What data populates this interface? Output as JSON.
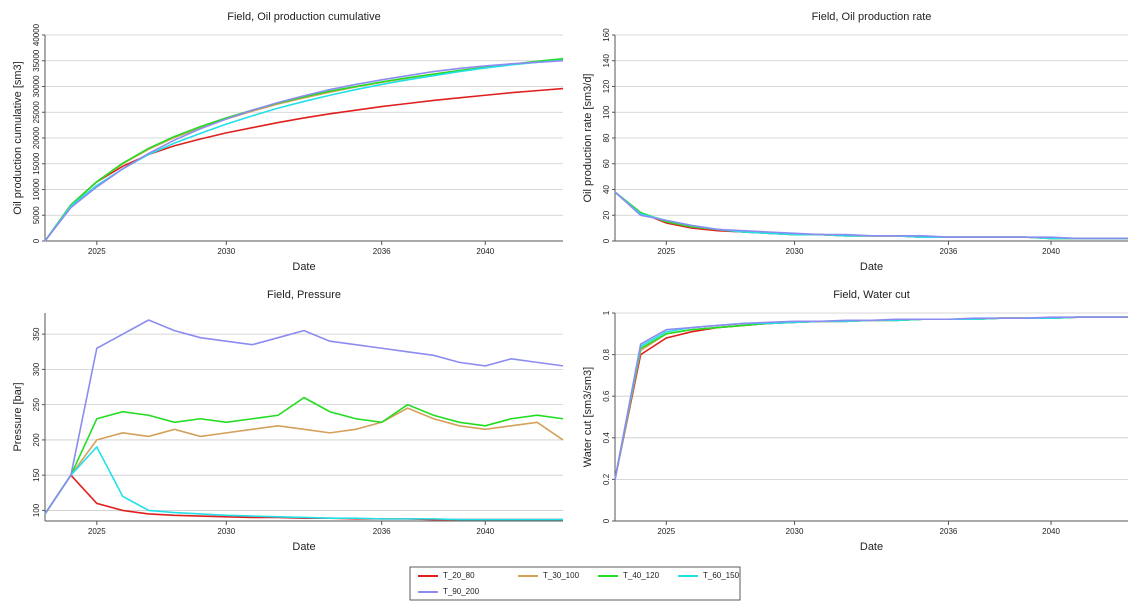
{
  "chart_data": [
    {
      "type": "line",
      "title": "Field, Oil production cumulative",
      "x_label": "Date",
      "y_label": "Oil production cumulative [sm3]",
      "x": [
        2023,
        2024,
        2025,
        2026,
        2027,
        2028,
        2029,
        2030,
        2031,
        2032,
        2033,
        2034,
        2035,
        2036,
        2037,
        2038,
        2039,
        2040,
        2041,
        2042,
        2043
      ],
      "xlim": [
        2023,
        2043
      ],
      "xticks": [
        2025,
        2030,
        2036,
        2040
      ],
      "ylim": [
        0,
        40000
      ],
      "yticks": [
        0,
        5000,
        10000,
        15000,
        20000,
        25000,
        30000,
        35000,
        40000
      ],
      "grid": true,
      "series": [
        {
          "values": [
            0,
            7000,
            11500,
            14500,
            16800,
            18500,
            19800,
            21000,
            22000,
            23000,
            23900,
            24700,
            25400,
            26100,
            26700,
            27300,
            27800,
            28300,
            28800,
            29200,
            29600
          ]
        },
        {
          "values": [
            0,
            7000,
            11500,
            15000,
            17800,
            20100,
            22000,
            23700,
            25200,
            26600,
            27800,
            28900,
            29900,
            30800,
            31600,
            32400,
            33100,
            33700,
            34300,
            34800,
            35300
          ]
        },
        {
          "values": [
            0,
            7000,
            11500,
            15100,
            18000,
            20300,
            22200,
            23900,
            25400,
            26800,
            28000,
            29100,
            30000,
            30900,
            31700,
            32400,
            33100,
            33700,
            34300,
            34900,
            35400
          ]
        },
        {
          "values": [
            0,
            6800,
            10800,
            14000,
            16800,
            19000,
            20900,
            22700,
            24300,
            25800,
            27100,
            28300,
            29400,
            30400,
            31300,
            32100,
            32900,
            33600,
            34200,
            34700,
            35100
          ]
        },
        {
          "values": [
            0,
            6500,
            10500,
            14000,
            17000,
            19600,
            21800,
            23700,
            25400,
            26900,
            28200,
            29400,
            30400,
            31300,
            32100,
            32900,
            33500,
            34000,
            34400,
            34700,
            35000
          ]
        }
      ]
    },
    {
      "type": "line",
      "title": "Field, Oil production rate",
      "x_label": "Date",
      "y_label": "Oil production rate [sm3/d]",
      "x": [
        2023,
        2024,
        2025,
        2026,
        2027,
        2028,
        2029,
        2030,
        2031,
        2032,
        2033,
        2034,
        2035,
        2036,
        2037,
        2038,
        2039,
        2040,
        2041,
        2042,
        2043
      ],
      "xlim": [
        2023,
        2043
      ],
      "xticks": [
        2025,
        2030,
        2036,
        2040
      ],
      "ylim": [
        0,
        160
      ],
      "yticks": [
        0,
        20,
        40,
        60,
        80,
        100,
        120,
        140,
        160
      ],
      "grid": true,
      "series": [
        {
          "values": [
            38,
            22,
            14,
            10,
            8,
            7,
            6,
            5,
            5,
            4,
            4,
            4,
            3,
            3,
            3,
            3,
            3,
            2,
            2,
            2,
            2
          ]
        },
        {
          "values": [
            38,
            22,
            15,
            11,
            9,
            7,
            6,
            5,
            5,
            4,
            4,
            4,
            3,
            3,
            3,
            3,
            3,
            2,
            2,
            2,
            2
          ]
        },
        {
          "values": [
            38,
            22,
            15,
            11,
            9,
            7,
            6,
            5,
            5,
            4,
            4,
            4,
            3,
            3,
            3,
            3,
            3,
            2,
            2,
            2,
            2
          ]
        },
        {
          "values": [
            38,
            21,
            16,
            12,
            9,
            7,
            6,
            5,
            5,
            4,
            4,
            4,
            3,
            3,
            3,
            3,
            3,
            2,
            2,
            2,
            2
          ]
        },
        {
          "values": [
            38,
            20,
            16,
            12,
            9,
            8,
            7,
            6,
            5,
            5,
            4,
            4,
            4,
            3,
            3,
            3,
            3,
            3,
            2,
            2,
            2
          ]
        }
      ]
    },
    {
      "type": "line",
      "title": "Field, Pressure",
      "x_label": "Date",
      "y_label": "Pressure [bar]",
      "x": [
        2023,
        2024,
        2025,
        2026,
        2027,
        2028,
        2029,
        2030,
        2031,
        2032,
        2033,
        2034,
        2035,
        2036,
        2037,
        2038,
        2039,
        2040,
        2041,
        2042,
        2043
      ],
      "xlim": [
        2023,
        2043
      ],
      "xticks": [
        2025,
        2030,
        2036,
        2040
      ],
      "ylim": [
        85,
        380
      ],
      "yticks": [
        100,
        150,
        200,
        250,
        300,
        350
      ],
      "grid": true,
      "series": [
        {
          "values": [
            95,
            150,
            110,
            100,
            95,
            93,
            92,
            91,
            90,
            90,
            89,
            89,
            88,
            88,
            88,
            87,
            87,
            87,
            87,
            87,
            87
          ]
        },
        {
          "values": [
            95,
            150,
            200,
            210,
            205,
            215,
            205,
            210,
            215,
            220,
            215,
            210,
            215,
            225,
            245,
            230,
            220,
            215,
            220,
            225,
            200
          ]
        },
        {
          "values": [
            95,
            150,
            230,
            240,
            235,
            225,
            230,
            225,
            230,
            235,
            260,
            240,
            230,
            225,
            250,
            235,
            225,
            220,
            230,
            235,
            230
          ]
        },
        {
          "values": [
            95,
            150,
            190,
            120,
            100,
            97,
            95,
            93,
            92,
            91,
            90,
            89,
            89,
            88,
            88,
            88,
            87,
            87,
            87,
            87,
            87
          ]
        },
        {
          "values": [
            95,
            150,
            330,
            350,
            370,
            355,
            345,
            340,
            335,
            345,
            355,
            340,
            335,
            330,
            325,
            320,
            310,
            305,
            315,
            310,
            305
          ]
        }
      ]
    },
    {
      "type": "line",
      "title": "Field, Water cut",
      "x_label": "Date",
      "y_label": "Water cut [sm3/sm3]",
      "x": [
        2023,
        2024,
        2025,
        2026,
        2027,
        2028,
        2029,
        2030,
        2031,
        2032,
        2033,
        2034,
        2035,
        2036,
        2037,
        2038,
        2039,
        2040,
        2041,
        2042,
        2043
      ],
      "xlim": [
        2023,
        2043
      ],
      "xticks": [
        2025,
        2030,
        2036,
        2040
      ],
      "ylim": [
        0,
        1
      ],
      "yticks": [
        0,
        0.2,
        0.4,
        0.6,
        0.8,
        1
      ],
      "grid": true,
      "series": [
        {
          "values": [
            0.2,
            0.8,
            0.88,
            0.91,
            0.93,
            0.94,
            0.95,
            0.955,
            0.96,
            0.96,
            0.965,
            0.965,
            0.97,
            0.97,
            0.97,
            0.975,
            0.975,
            0.975,
            0.98,
            0.98,
            0.98
          ]
        },
        {
          "values": [
            0.2,
            0.82,
            0.9,
            0.92,
            0.93,
            0.94,
            0.95,
            0.955,
            0.96,
            0.96,
            0.965,
            0.965,
            0.97,
            0.97,
            0.97,
            0.975,
            0.975,
            0.975,
            0.98,
            0.98,
            0.98
          ]
        },
        {
          "values": [
            0.2,
            0.83,
            0.9,
            0.92,
            0.93,
            0.94,
            0.95,
            0.955,
            0.96,
            0.96,
            0.965,
            0.965,
            0.97,
            0.97,
            0.97,
            0.975,
            0.975,
            0.975,
            0.98,
            0.98,
            0.98
          ]
        },
        {
          "values": [
            0.2,
            0.84,
            0.91,
            0.93,
            0.94,
            0.95,
            0.95,
            0.955,
            0.96,
            0.96,
            0.965,
            0.965,
            0.97,
            0.97,
            0.97,
            0.975,
            0.975,
            0.975,
            0.98,
            0.98,
            0.98
          ]
        },
        {
          "values": [
            0.2,
            0.85,
            0.92,
            0.93,
            0.94,
            0.95,
            0.955,
            0.96,
            0.96,
            0.965,
            0.965,
            0.97,
            0.97,
            0.97,
            0.975,
            0.975,
            0.975,
            0.98,
            0.98,
            0.98,
            0.98
          ]
        }
      ]
    }
  ],
  "legend": {
    "position": "bottom",
    "entries": [
      {
        "name": "T_20_80",
        "color": "#e0201e"
      },
      {
        "name": "T_30_100",
        "color": "#d4a05a"
      },
      {
        "name": "T_40_120",
        "color": "#22dd22"
      },
      {
        "name": "T_60_150",
        "color": "#22e0e8"
      },
      {
        "name": "T_90_200",
        "color": "#8c8cf0"
      }
    ]
  }
}
